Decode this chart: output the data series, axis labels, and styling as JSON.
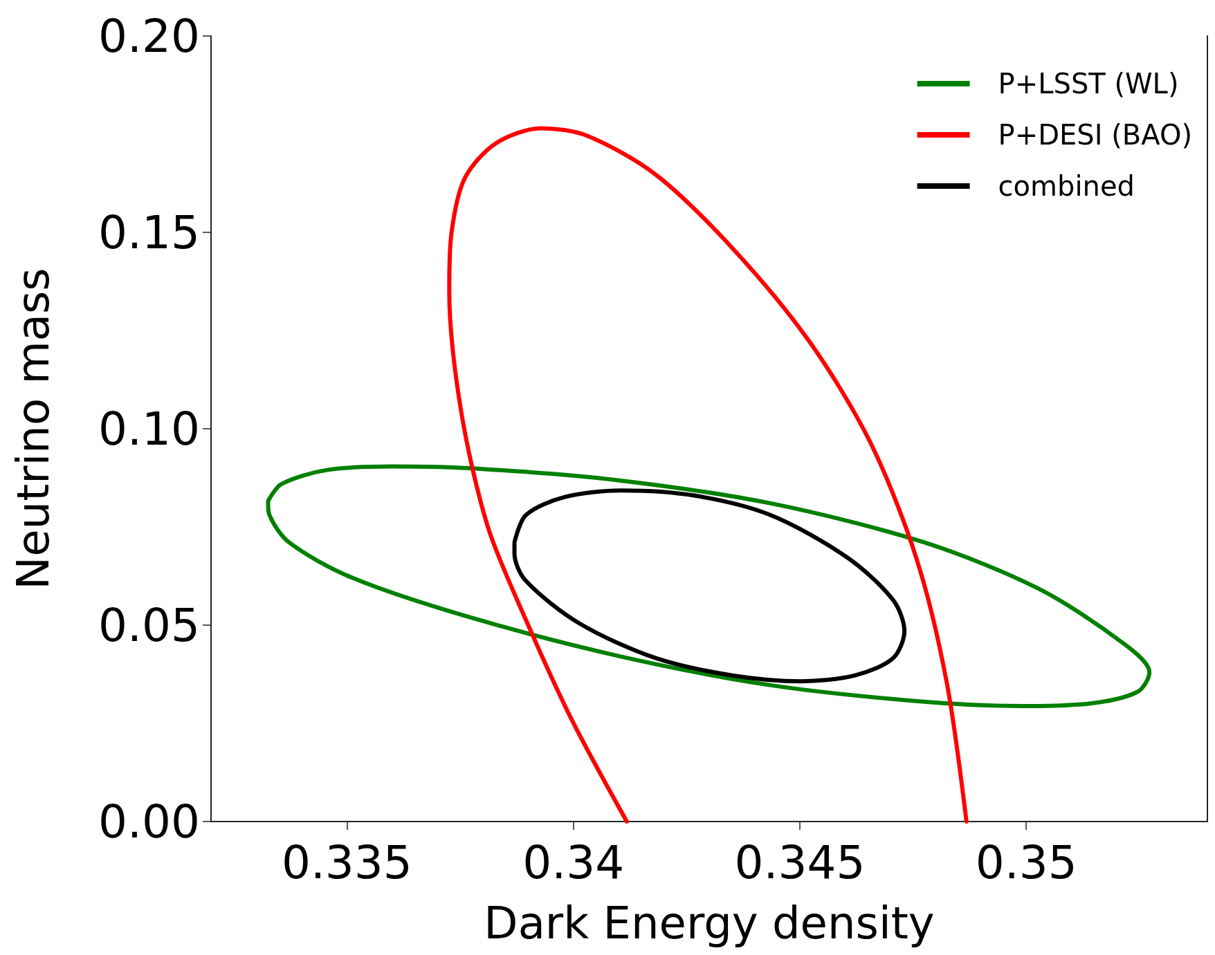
{
  "chart_data": {
    "type": "line",
    "xlabel": "Dark Energy density",
    "ylabel": "Neutrino mass",
    "xlim": [
      0.332,
      0.354
    ],
    "ylim": [
      0,
      0.2
    ],
    "xticks": [
      0.335,
      0.34,
      0.345,
      0.35
    ],
    "yticks": [
      {
        "value": 0,
        "label": "0.00"
      },
      {
        "value": 0.05,
        "label": "0.05"
      },
      {
        "value": 0.1,
        "label": "0.10"
      },
      {
        "value": 0.15,
        "label": "0.15"
      },
      {
        "value": 0.2,
        "label": "0.20"
      }
    ],
    "grid": false,
    "legend": "top right",
    "series": [
      {
        "name": "P+LSST (WL)",
        "color": "#008000",
        "x": [
          0.33326,
          0.33355,
          0.33456,
          0.336,
          0.33794,
          0.34098,
          0.34436,
          0.34774,
          0.35027,
          0.35213,
          0.35272,
          0.35247,
          0.35145,
          0.34993,
          0.34774,
          0.34436,
          0.34098,
          0.3376,
          0.33507,
          0.33372,
          0.33329,
          0.33326
        ],
        "values": [
          0.0816,
          0.0859,
          0.0895,
          0.0904,
          0.0898,
          0.0869,
          0.081,
          0.0711,
          0.0593,
          0.0455,
          0.038,
          0.0331,
          0.0301,
          0.0294,
          0.0305,
          0.0347,
          0.0422,
          0.0524,
          0.0623,
          0.0711,
          0.078,
          0.0812
        ]
      },
      {
        "name": "P+DESI (BAO)",
        "color": "#ff0000",
        "x": [
          0.34118,
          0.33997,
          0.33895,
          0.33811,
          0.33752,
          0.33726,
          0.33731,
          0.3376,
          0.33828,
          0.33929,
          0.3403,
          0.34182,
          0.34351,
          0.3452,
          0.34655,
          0.34757,
          0.34824,
          0.34868
        ],
        "values": [
          0,
          0.0258,
          0.0514,
          0.0751,
          0.1046,
          0.1352,
          0.1499,
          0.1637,
          0.1726,
          0.1765,
          0.1746,
          0.1647,
          0.146,
          0.1224,
          0.0967,
          0.0672,
          0.0357,
          0
        ]
      },
      {
        "name": "combined",
        "color": "#000000",
        "x": [
          0.3387,
          0.33895,
          0.3398,
          0.34106,
          0.34267,
          0.34436,
          0.34605,
          0.34706,
          0.34731,
          0.34706,
          0.34622,
          0.34503,
          0.34351,
          0.34182,
          0.34014,
          0.33895,
          0.3387,
          0.3387
        ],
        "values": [
          0.0711,
          0.078,
          0.0826,
          0.0843,
          0.083,
          0.078,
          0.0672,
          0.0564,
          0.0485,
          0.0416,
          0.0372,
          0.0357,
          0.0372,
          0.0416,
          0.0504,
          0.0613,
          0.0682,
          0.0707
        ]
      }
    ]
  }
}
